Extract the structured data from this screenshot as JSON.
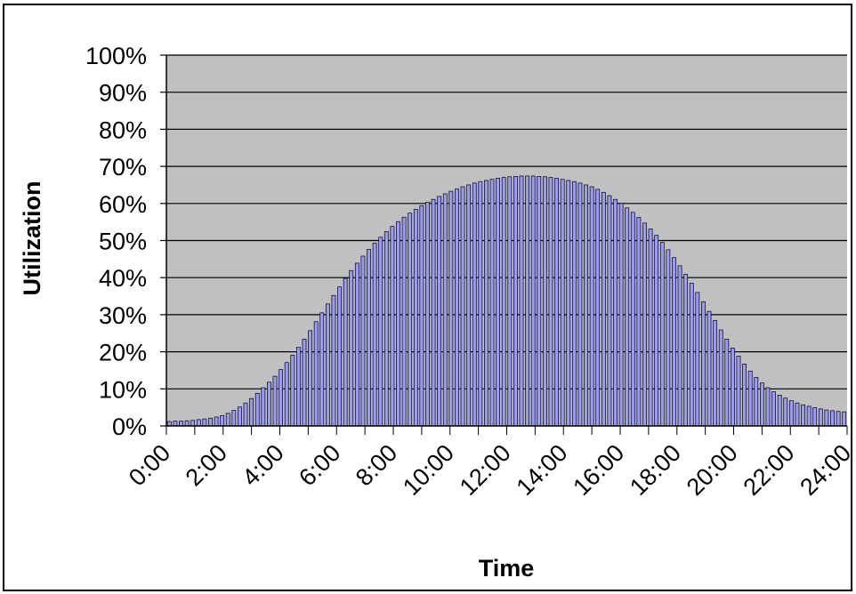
{
  "chart_data": {
    "type": "bar",
    "title": "",
    "xlabel": "Time",
    "ylabel": "Utilization",
    "ylim": [
      0,
      1
    ],
    "y_ticks": [
      "0%",
      "10%",
      "20%",
      "30%",
      "40%",
      "50%",
      "60%",
      "70%",
      "80%",
      "90%",
      "100%"
    ],
    "x_ticks": [
      "0:00",
      "2:00",
      "4:00",
      "6:00",
      "8:00",
      "10:00",
      "12:00",
      "14:00",
      "16:00",
      "18:00",
      "20:00",
      "22:00",
      "24:00"
    ],
    "x_range_hours": [
      0,
      24
    ],
    "interval_minutes": 10,
    "grid": true,
    "legend": "none",
    "colors": {
      "bar_fill": "#9999ff",
      "bar_stroke": "#000000",
      "plot_background": "#c0c0c0",
      "gridline": "#000000"
    },
    "values": [
      0.012,
      0.013,
      0.013,
      0.014,
      0.015,
      0.017,
      0.019,
      0.021,
      0.024,
      0.028,
      0.034,
      0.042,
      0.051,
      0.062,
      0.074,
      0.088,
      0.103,
      0.118,
      0.134,
      0.152,
      0.171,
      0.191,
      0.212,
      0.234,
      0.257,
      0.281,
      0.305,
      0.329,
      0.352,
      0.375,
      0.398,
      0.419,
      0.439,
      0.458,
      0.476,
      0.493,
      0.509,
      0.524,
      0.538,
      0.551,
      0.563,
      0.574,
      0.584,
      0.594,
      0.603,
      0.611,
      0.619,
      0.626,
      0.633,
      0.639,
      0.645,
      0.65,
      0.655,
      0.659,
      0.662,
      0.665,
      0.668,
      0.67,
      0.672,
      0.673,
      0.674,
      0.674,
      0.674,
      0.673,
      0.672,
      0.67,
      0.668,
      0.665,
      0.662,
      0.659,
      0.655,
      0.65,
      0.645,
      0.638,
      0.63,
      0.621,
      0.611,
      0.6,
      0.588,
      0.576,
      0.562,
      0.547,
      0.531,
      0.514,
      0.495,
      0.475,
      0.454,
      0.432,
      0.409,
      0.385,
      0.36,
      0.335,
      0.309,
      0.284,
      0.259,
      0.234,
      0.21,
      0.188,
      0.167,
      0.148,
      0.131,
      0.116,
      0.103,
      0.092,
      0.083,
      0.075,
      0.068,
      0.062,
      0.057,
      0.053,
      0.049,
      0.046,
      0.043,
      0.041,
      0.039,
      0.038
    ]
  }
}
